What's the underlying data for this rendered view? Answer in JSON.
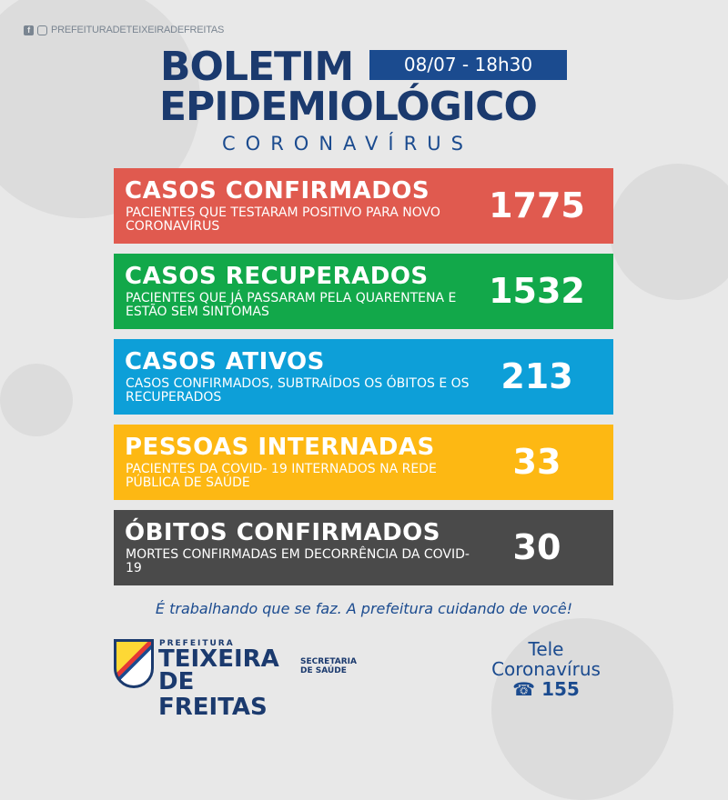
{
  "header": {
    "social_handle": "PREFEITURADETEIXEIRADEFREITAS",
    "title_line1": "BOLETIM",
    "date": "08/07 - 18h30",
    "title_line2": "EPIDEMIOLÓGICO",
    "subtitle": "CORONAVÍRUS"
  },
  "cards": [
    {
      "title": "CASOS CONFIRMADOS",
      "desc": "PACIENTES QUE TESTARAM POSITIVO PARA NOVO CORONAVÍRUS",
      "value": "1775",
      "color": "#e05a4f"
    },
    {
      "title": "CASOS RECUPERADOS",
      "desc": "PACIENTES QUE JÁ PASSARAM PELA QUARENTENA E ESTÃO SEM SINTOMAS",
      "value": "1532",
      "color": "#12a84a"
    },
    {
      "title": "CASOS ATIVOS",
      "desc": "CASOS CONFIRMADOS, SUBTRAÍDOS OS ÓBITOS E OS RECUPERADOS",
      "value": "213",
      "color": "#0d9fd8"
    },
    {
      "title": "PESSOAS INTERNADAS",
      "desc": "PACIENTES DA COVID- 19 INTERNADOS NA REDE PÚBLICA DE SAÚDE",
      "value": "33",
      "color": "#fdb813"
    },
    {
      "title": "ÓBITOS CONFIRMADOS",
      "desc": "MORTES CONFIRMADAS EM DECORRÊNCIA DA COVID-19",
      "value": "30",
      "color": "#4a4a4a"
    }
  ],
  "footer": {
    "slogan": "É trabalhando que se faz. A prefeitura cuidando de você!",
    "logo_small": "PREFEITURA",
    "logo_line1": "TEIXEIRA",
    "logo_line2": "DE FREITAS",
    "secretaria": "SECRETARIA DE SAÚDE",
    "tele_line1": "Tele",
    "tele_line2": "Coronavírus",
    "tele_number": "155"
  }
}
